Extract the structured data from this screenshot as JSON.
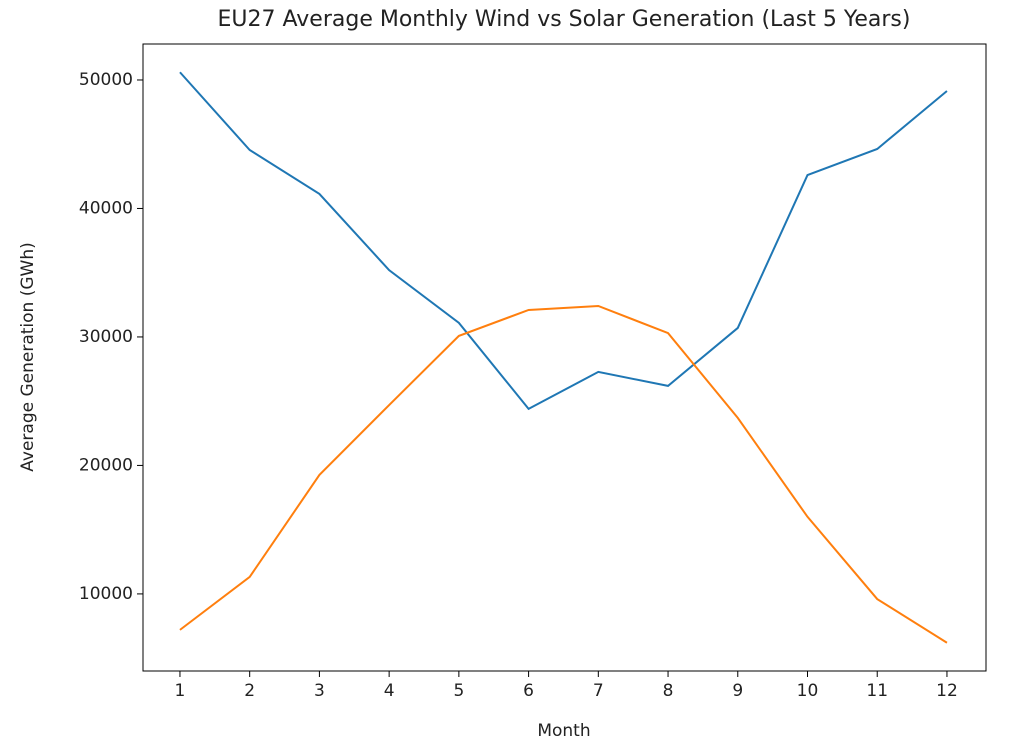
{
  "chart_data": {
    "type": "line",
    "title": "EU27 Average Monthly Wind vs Solar Generation (Last 5 Years)",
    "x_label": "Month",
    "y_label": "Average Generation (GWh)",
    "x": [
      1,
      2,
      3,
      4,
      5,
      6,
      7,
      8,
      9,
      10,
      11,
      12
    ],
    "series": [
      {
        "color": "#1f77b4",
        "values": [
          50600,
          44550,
          41130,
          35200,
          31100,
          24400,
          27280,
          26190,
          30700,
          42600,
          44630,
          49140
        ]
      },
      {
        "color": "#ff7f0e",
        "values": [
          7200,
          11320,
          19260,
          24700,
          30080,
          32100,
          32410,
          30300,
          23700,
          16000,
          9600,
          6200
        ]
      }
    ],
    "xlim": [
      0.47,
      12.56
    ],
    "xticks": [
      1,
      2,
      3,
      4,
      5,
      6,
      7,
      8,
      9,
      10,
      11,
      12
    ],
    "ylim": [
      4000,
      52800
    ],
    "yticks": [
      10000,
      20000,
      30000,
      40000,
      50000
    ],
    "grid": false
  }
}
